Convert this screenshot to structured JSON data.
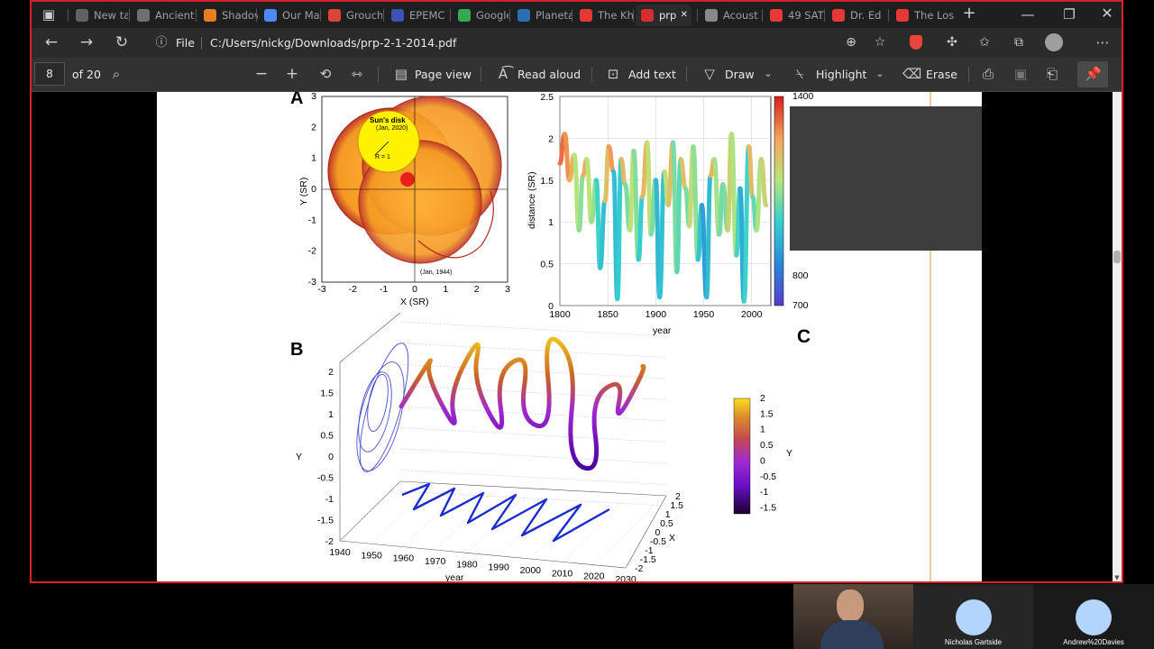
{
  "browser": {
    "tabs": [
      {
        "label": "New ta",
        "icon": "new-tab-icon",
        "color": "#5f6368"
      },
      {
        "label": "Ancient",
        "icon": "document-icon",
        "color": "#6f6f6f"
      },
      {
        "label": "Shadow",
        "icon": "blogger-icon",
        "color": "#e67e22"
      },
      {
        "label": "Our Ma",
        "icon": "docs-icon",
        "color": "#4c8bf5"
      },
      {
        "label": "Grouch",
        "icon": "chrome-icon",
        "color": "#db4437"
      },
      {
        "label": "EPEMC",
        "icon": "site-icon",
        "color": "#3f51b5"
      },
      {
        "label": "Google",
        "icon": "maps-icon",
        "color": "#34a853"
      },
      {
        "label": "Planeta",
        "icon": "site-icon",
        "color": "#2a6fb5"
      },
      {
        "label": "The Kh",
        "icon": "youtube-icon",
        "color": "#e53935"
      },
      {
        "label": "prp",
        "icon": "pdf-icon",
        "color": "#d32f2f"
      },
      {
        "label": "Acoust",
        "icon": "wikipedia-icon",
        "color": "#888888"
      },
      {
        "label": "49 SAT",
        "icon": "youtube-icon",
        "color": "#e53935"
      },
      {
        "label": "Dr. Ed",
        "icon": "youtube-icon",
        "color": "#e53935"
      },
      {
        "label": "The Los",
        "icon": "youtube-icon",
        "color": "#e53935"
      }
    ],
    "address": {
      "scheme_label": "File",
      "url": "C:/Users/nickg/Downloads/prp-2-1-2014.pdf"
    }
  },
  "pdf_toolbar": {
    "page_number": "8",
    "page_total": "of 20",
    "page_view": "Page view",
    "read_aloud": "Read aloud",
    "add_text": "Add text",
    "draw": "Draw",
    "highlight": "Highlight",
    "erase": "Erase"
  },
  "figure": {
    "panel_a": {
      "label": "A",
      "disk_title": "Sun's disk",
      "disk_date": "(Jan, 2020)",
      "radius_label": "R = 1",
      "end_date": "(Jan, 1944)",
      "xlabel": "X (SR)",
      "ylabel": "Y (SR)",
      "xticks": [
        "-3",
        "-2",
        "-1",
        "0",
        "1",
        "2",
        "3"
      ],
      "yticks": [
        "3",
        "2",
        "1",
        "0",
        "-1",
        "-2",
        "-3"
      ]
    },
    "panel_b": {
      "label": "B",
      "ylabel": "Y",
      "xlabel": "year",
      "zlabel": "X",
      "yticks": [
        "2",
        "1.5",
        "1",
        "0.5",
        "0",
        "-0.5",
        "-1",
        "-1.5",
        "-2"
      ],
      "year_ticks": [
        "1940",
        "1950",
        "1960",
        "1970",
        "1980",
        "1990",
        "2000",
        "2010",
        "2020",
        "2030"
      ],
      "x_ticks": [
        "2",
        "1.5",
        "1",
        "0.5",
        "0",
        "-0.5",
        "-1",
        "-1.5",
        "-2"
      ],
      "colorbar_ticks": [
        "2",
        "1.5",
        "1",
        "0.5",
        "0",
        "-0.5",
        "-1",
        "-1.5"
      ],
      "colorbar_label": "Y"
    },
    "panel_c": {
      "label": "C",
      "colorbar_ticks": [
        "1400",
        "800",
        "700"
      ]
    }
  },
  "chart_data": [
    {
      "type": "line",
      "xlabel": "year",
      "ylabel": "distance (SR)",
      "xlim": [
        1800,
        2020
      ],
      "ylim": [
        0,
        2.5
      ],
      "xticks": [
        "1800",
        "1850",
        "1900",
        "1950",
        "2000"
      ],
      "yticks": [
        "0",
        "0.5",
        "1",
        "1.5",
        "2",
        "2.5"
      ],
      "series": [
        {
          "x": [
            1800,
            1805,
            1810,
            1815,
            1820,
            1824,
            1828,
            1833,
            1838,
            1842,
            1847,
            1851,
            1856,
            1860,
            1864,
            1868,
            1873,
            1877,
            1882,
            1886,
            1891,
            1895,
            1900,
            1904,
            1909,
            1913,
            1918,
            1922,
            1926,
            1931,
            1935,
            1939,
            1944,
            1948,
            1953,
            1957,
            1961,
            1966,
            1970,
            1975,
            1979,
            1984,
            1988,
            1992,
            1997,
            2001,
            2005,
            2010,
            2015
          ],
          "y": [
            1.7,
            2.05,
            1.5,
            1.8,
            0.9,
            1.55,
            1.75,
            1.0,
            1.5,
            0.45,
            1.25,
            1.9,
            1.6,
            0.08,
            1.75,
            1.45,
            0.9,
            1.85,
            0.55,
            1.3,
            1.95,
            0.85,
            1.5,
            0.1,
            1.6,
            1.2,
            1.95,
            0.4,
            1.75,
            1.4,
            0.95,
            1.9,
            0.55,
            1.2,
            0.1,
            1.55,
            1.75,
            0.85,
            1.45,
            0.9,
            2.05,
            0.6,
            1.4,
            0.05,
            1.9,
            1.3,
            0.9,
            1.75,
            1.2
          ]
        }
      ],
      "colorbar": {
        "min": 700,
        "max": 1400
      }
    },
    {
      "type": "line",
      "xlabel": "year",
      "ylabel": "Y",
      "xlim": [
        1940,
        2030
      ],
      "ylim": [
        -2,
        2
      ],
      "series": [
        {
          "x": [
            1944,
            1948,
            1952,
            1956,
            1960,
            1964,
            1968,
            1972,
            1976,
            1980,
            1984,
            1988,
            1992,
            1996,
            2000,
            2004,
            2008,
            2012,
            2016,
            2020,
            2024
          ],
          "y": [
            0.1,
            1.4,
            0.9,
            -0.6,
            0.4,
            1.9,
            0.7,
            -0.8,
            0.9,
            1.4,
            -0.2,
            -0.5,
            2.0,
            1.2,
            -1.2,
            -1.5,
            0.3,
            0.8,
            -0.4,
            1.1,
            1.0
          ]
        }
      ]
    }
  ],
  "participants": [
    {
      "name": "Nicholas Gartside"
    },
    {
      "name": "Andrew%20Davies"
    }
  ]
}
